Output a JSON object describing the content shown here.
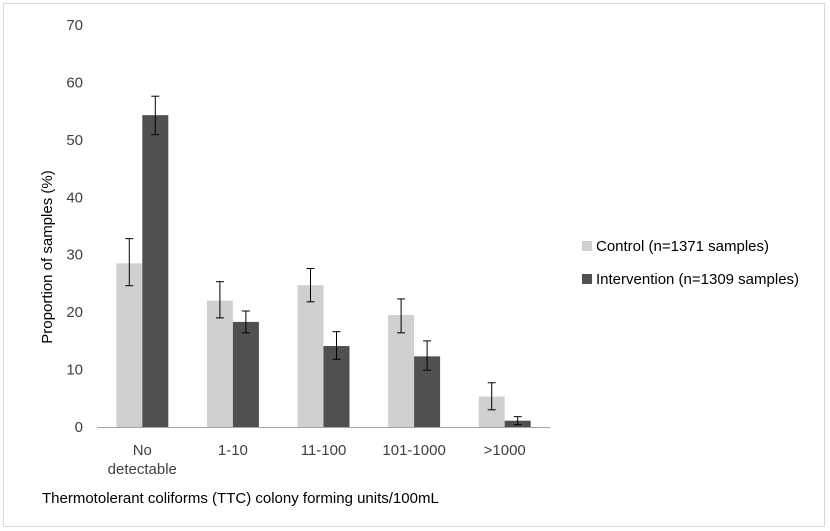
{
  "chart_data": {
    "type": "bar",
    "categories": [
      [
        "No",
        "detectable"
      ],
      [
        "1-10"
      ],
      [
        "11-100"
      ],
      [
        "101-1000"
      ],
      [
        ">1000"
      ]
    ],
    "series": [
      {
        "name": "Control (n=1371 samples)",
        "color": "#d0d0d0",
        "values": [
          28.5,
          22.0,
          24.7,
          19.5,
          5.3
        ],
        "error_low": [
          24.6,
          19.0,
          21.8,
          16.4,
          3.0
        ],
        "error_high": [
          32.8,
          25.3,
          27.6,
          22.3,
          7.7
        ]
      },
      {
        "name": "Intervention (n=1309 samples)",
        "color": "#505050",
        "values": [
          54.3,
          18.3,
          14.1,
          12.3,
          1.1
        ],
        "error_low": [
          50.9,
          16.4,
          11.8,
          9.9,
          0.4
        ],
        "error_high": [
          57.6,
          20.2,
          16.6,
          15.0,
          1.8
        ]
      }
    ],
    "ylim": [
      0,
      70
    ],
    "yticks": [
      0,
      10,
      20,
      30,
      40,
      50,
      60,
      70
    ],
    "ylabel": "Proportion of samples (%)",
    "xlabel": "Thermotolerant coliforms (TTC) colony forming units/100mL",
    "legend_position": "right",
    "grid": false
  }
}
